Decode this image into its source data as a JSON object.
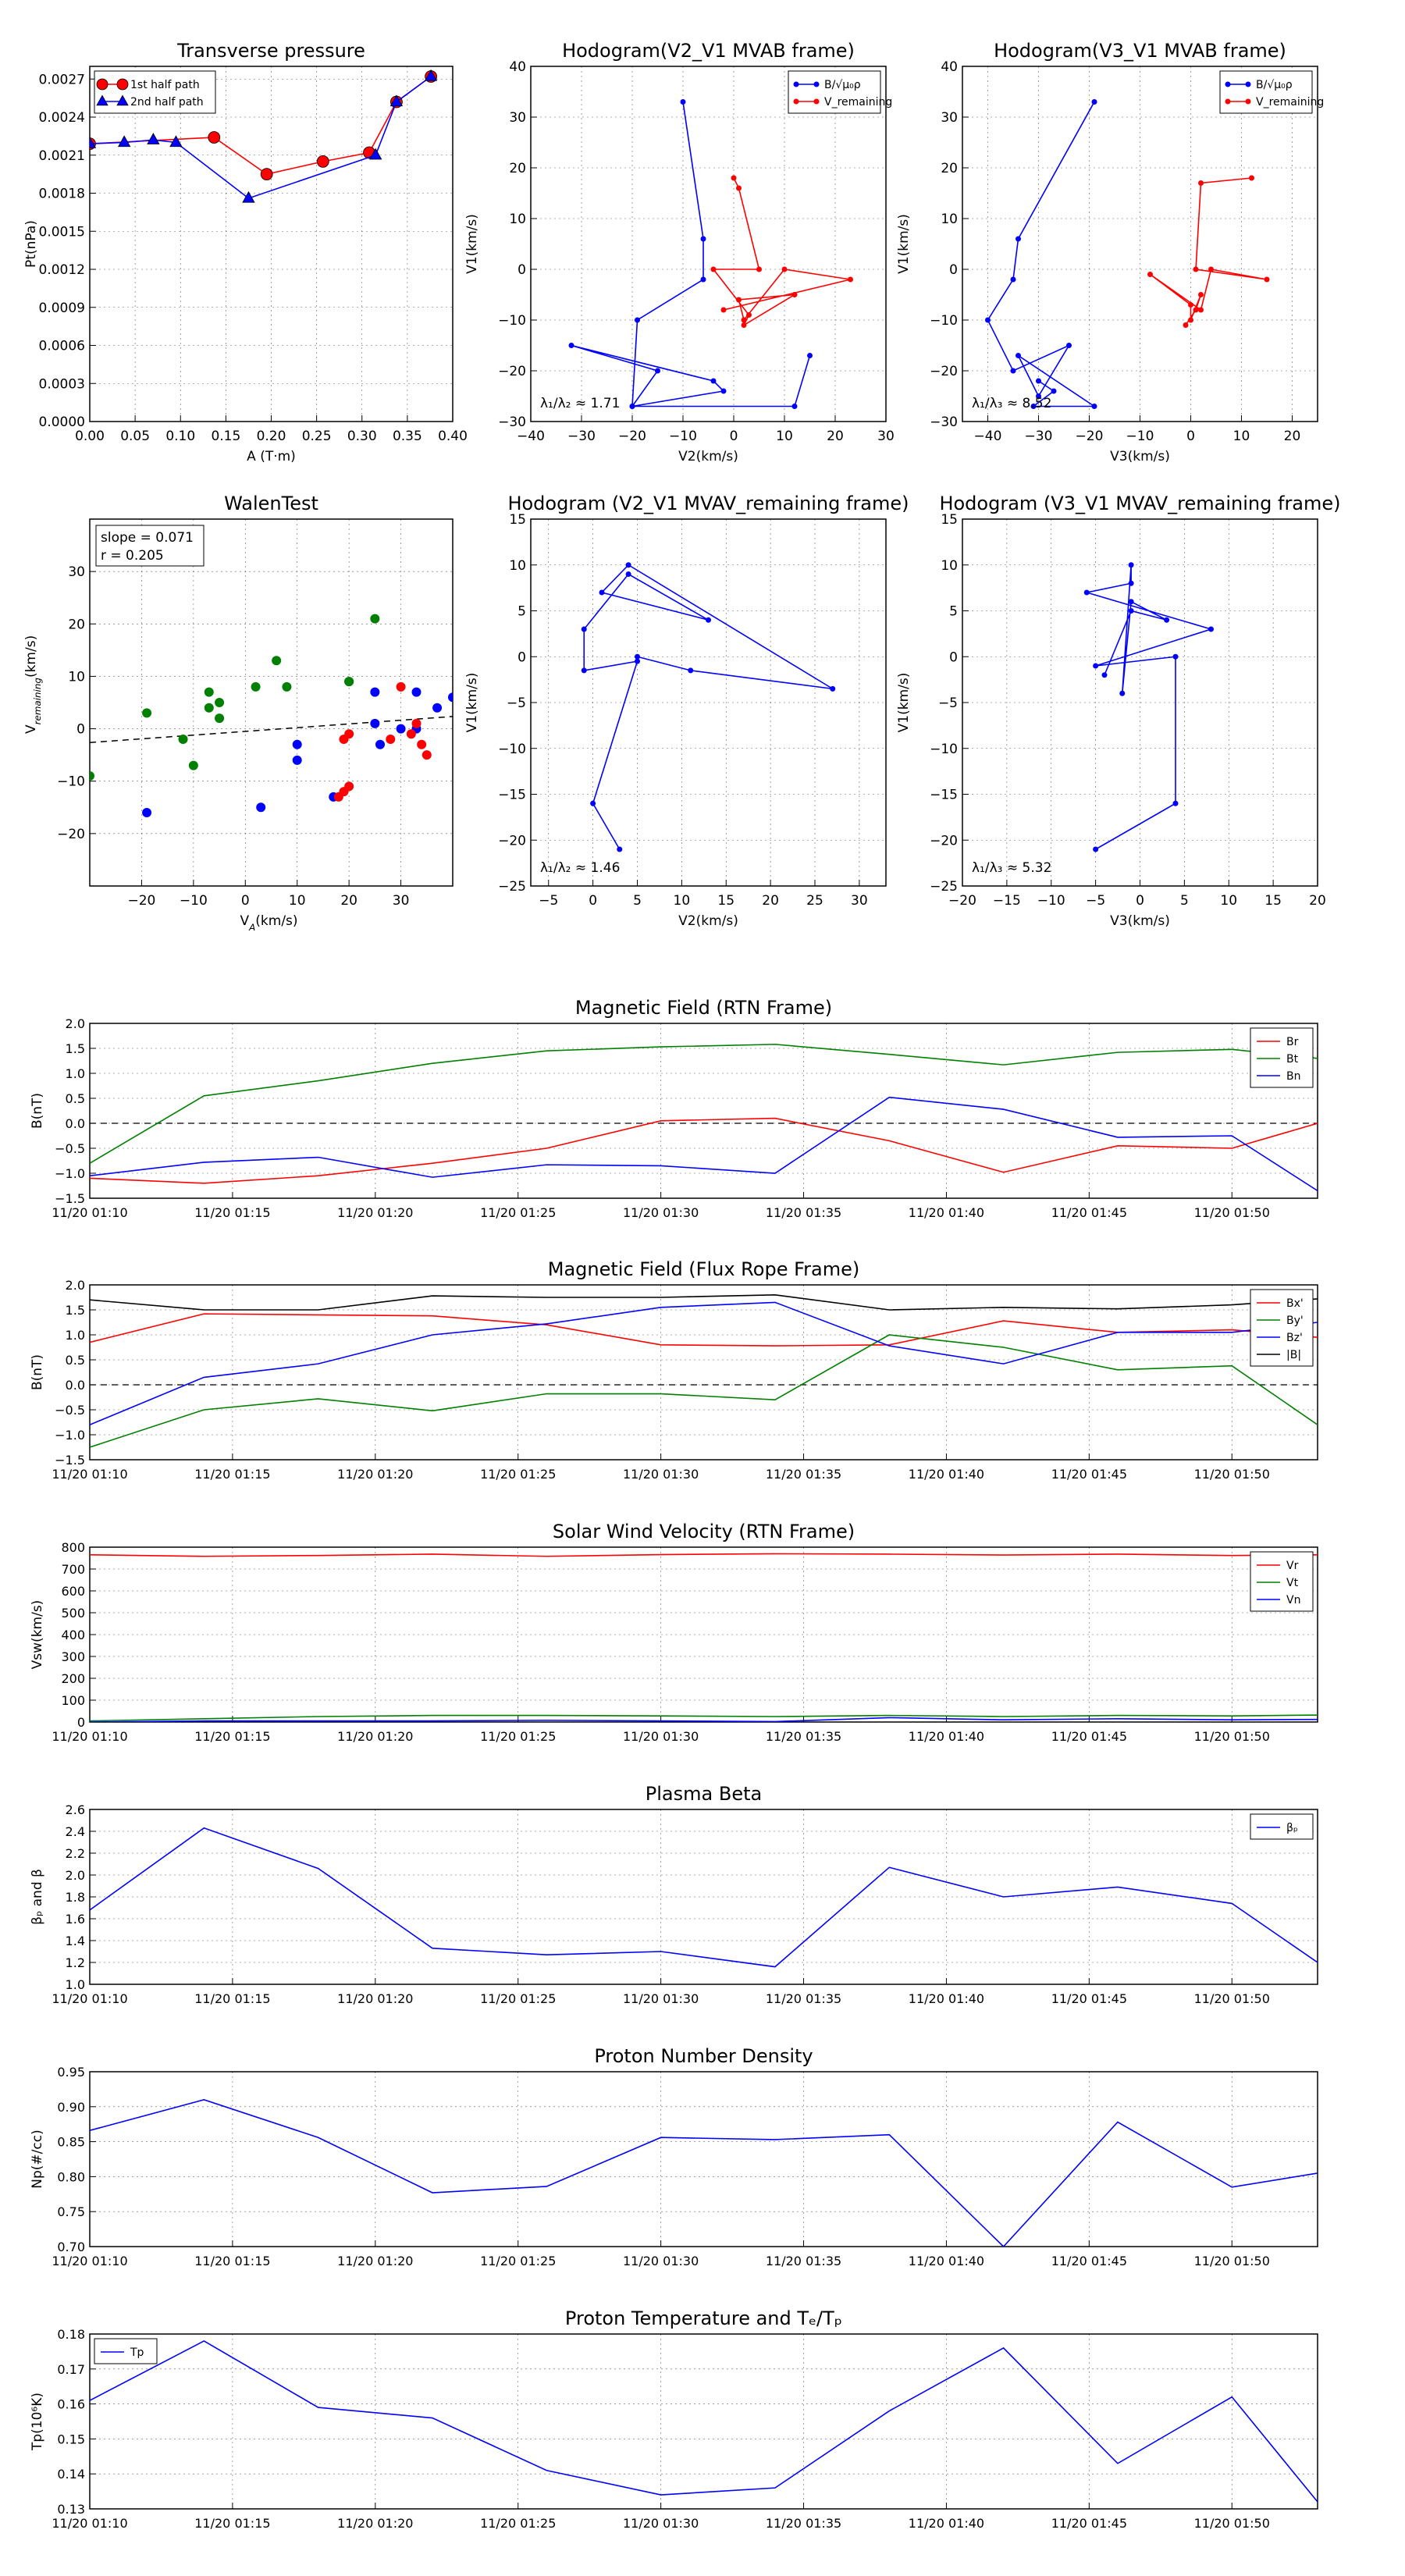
{
  "colors": {
    "red": "#ff0000",
    "green": "#008000",
    "blue": "#0000ff",
    "black": "#000000",
    "dash": "#555555"
  },
  "chart_data": [
    {
      "id": "pt",
      "type": "scatter",
      "title": "Transverse pressure",
      "xlabel": "A (T·m)",
      "ylabel": "Pt(nPa)",
      "xlim": [
        0,
        0.4
      ],
      "ylim": [
        0,
        0.0028
      ],
      "xticks": [
        "0.00",
        "0.05",
        "0.10",
        "0.15",
        "0.20",
        "0.25",
        "0.30",
        "0.35",
        "0.40"
      ],
      "yticks": [
        "0.0000",
        "0.0003",
        "0.0006",
        "0.0009",
        "0.0012",
        "0.0015",
        "0.0018",
        "0.0021",
        "0.0024",
        "0.0027"
      ],
      "legend": [
        "1st half path",
        "2nd half path"
      ],
      "series": [
        {
          "name": "1st half path",
          "color": "red",
          "marker": "circle",
          "x": [
            0.0,
            0.137,
            0.195,
            0.257,
            0.308,
            0.338,
            0.376
          ],
          "y": [
            0.00219,
            0.00224,
            0.00195,
            0.00205,
            0.00212,
            0.00252,
            0.00272
          ]
        },
        {
          "name": "2nd half path",
          "color": "blue",
          "marker": "triangle",
          "x": [
            0.376,
            0.338,
            0.315,
            0.175,
            0.095,
            0.07,
            0.038,
            0.0
          ],
          "y": [
            0.00272,
            0.00252,
            0.0021,
            0.00176,
            0.0022,
            0.00222,
            0.0022,
            0.00219
          ]
        }
      ]
    },
    {
      "id": "hod1",
      "type": "line",
      "title": "Hodogram(V2_V1 MVAB frame)",
      "xlabel": "V2(km/s)",
      "ylabel": "V1(km/s)",
      "xlim": [
        -40,
        30
      ],
      "ylim": [
        -30,
        40
      ],
      "xticks": [
        "−40",
        "−30",
        "−20",
        "−10",
        "0",
        "10",
        "20",
        "30"
      ],
      "yticks": [
        "−30",
        "−20",
        "−10",
        "0",
        "10",
        "20",
        "30",
        "40"
      ],
      "annotation": "λ₁/λ₂ ≈ 1.71",
      "legend": [
        "B/√μ₀ρ",
        "V_remaining"
      ],
      "series": [
        {
          "name": "B/√μ₀ρ",
          "color": "blue",
          "x": [
            -10,
            -6,
            -6,
            -19,
            -20,
            -15,
            -32,
            -4,
            -2,
            -20,
            12,
            15
          ],
          "y": [
            33,
            6,
            -2,
            -10,
            -27,
            -20,
            -15,
            -22,
            -24,
            -27,
            -27,
            -17
          ]
        },
        {
          "name": "V_remaining",
          "color": "red",
          "x": [
            0,
            1,
            5,
            -4,
            3,
            2,
            12,
            1,
            2,
            10,
            23,
            -2
          ],
          "y": [
            18,
            16,
            0,
            0,
            -9,
            -11,
            -5,
            -6,
            -10,
            0,
            -2,
            -8
          ]
        }
      ]
    },
    {
      "id": "hod2",
      "type": "line",
      "title": "Hodogram(V3_V1 MVAB frame)",
      "xlabel": "V3(km/s)",
      "ylabel": "V1(km/s)",
      "xlim": [
        -45,
        25
      ],
      "ylim": [
        -30,
        40
      ],
      "xticks": [
        "−40",
        "−30",
        "−20",
        "−10",
        "0",
        "10",
        "20"
      ],
      "yticks": [
        "−30",
        "−20",
        "−10",
        "0",
        "10",
        "20",
        "30",
        "40"
      ],
      "annotation": "λ₁/λ₃ ≈ 8.52",
      "legend": [
        "B/√μ₀ρ",
        "V_remaining"
      ],
      "series": [
        {
          "name": "B/√μ₀ρ",
          "color": "blue",
          "x": [
            -19,
            -34,
            -35,
            -40,
            -35,
            -24,
            -30,
            -34,
            -19,
            -31,
            -27,
            -30
          ],
          "y": [
            33,
            6,
            -2,
            -10,
            -20,
            -15,
            -25,
            -17,
            -27,
            -27,
            -24,
            -22
          ]
        },
        {
          "name": "V_remaining",
          "color": "red",
          "x": [
            12,
            2,
            1,
            15,
            4,
            2,
            -8,
            0,
            0,
            2,
            1,
            -1
          ],
          "y": [
            18,
            17,
            0,
            -2,
            0,
            -8,
            -1,
            -7,
            -10,
            -5,
            -8,
            -11
          ]
        }
      ]
    },
    {
      "id": "walen",
      "type": "scatter",
      "title": "WalenTest",
      "xlabel": "V_A(km/s)",
      "ylabel": "V_remaining(km/s)",
      "xlim": [
        -30,
        40
      ],
      "ylim": [
        -30,
        40
      ],
      "xticks": [
        "−20",
        "−10",
        "0",
        "10",
        "20",
        "30"
      ],
      "yticks": [
        "−20",
        "−10",
        "0",
        "10",
        "20",
        "30"
      ],
      "stats": [
        "slope = 0.071",
        "r = 0.205"
      ],
      "fit": {
        "slope": 0.071,
        "intercept": -0.5
      },
      "series": [
        {
          "color": "green",
          "x": [
            -30,
            -19,
            -12,
            -10,
            -7,
            -7,
            -5,
            -5,
            2,
            6,
            8,
            20,
            20,
            25
          ],
          "y": [
            -9,
            3,
            -2,
            -7,
            7,
            4,
            5,
            2,
            8,
            13,
            8,
            9,
            9,
            21
          ]
        },
        {
          "color": "blue",
          "x": [
            -19,
            3,
            10,
            10,
            17,
            25,
            25,
            30,
            33,
            37,
            40,
            26,
            33
          ],
          "y": [
            -16,
            -15,
            -3,
            -6,
            -13,
            7,
            1,
            0,
            7,
            4,
            6,
            -3,
            0
          ]
        },
        {
          "color": "red",
          "x": [
            18,
            19,
            20,
            19,
            20,
            30,
            28,
            32,
            33,
            34,
            35
          ],
          "y": [
            -13,
            -12,
            -11,
            -2,
            -1,
            8,
            -2,
            -1,
            1,
            -3,
            -5
          ]
        }
      ]
    },
    {
      "id": "hod3",
      "type": "line",
      "title": "Hodogram (V2_V1 MVAV_remaining frame)",
      "xlabel": "V2(km/s)",
      "ylabel": "V1(km/s)",
      "xlim": [
        -7,
        33
      ],
      "ylim": [
        -25,
        15
      ],
      "xticks": [
        "−5",
        "0",
        "5",
        "10",
        "15",
        "20",
        "25",
        "30"
      ],
      "yticks": [
        "−25",
        "−20",
        "−15",
        "−10",
        "−5",
        "0",
        "5",
        "10",
        "15"
      ],
      "annotation": "λ₁/λ₂ ≈ 1.46",
      "series": [
        {
          "color": "blue",
          "x": [
            3,
            0,
            5,
            -1,
            -1,
            4,
            13,
            1,
            4,
            27,
            11,
            5
          ],
          "y": [
            -21,
            -16,
            -0.5,
            -1.5,
            3,
            9,
            4,
            7,
            10,
            -3.5,
            -1.5,
            0
          ]
        }
      ]
    },
    {
      "id": "hod4",
      "type": "line",
      "title": "Hodogram (V3_V1 MVAV_remaining frame)",
      "xlabel": "V3(km/s)",
      "ylabel": "V1(km/s)",
      "xlim": [
        -20,
        20
      ],
      "ylim": [
        -25,
        15
      ],
      "xticks": [
        "−20",
        "−15",
        "−10",
        "−5",
        "0",
        "5",
        "10",
        "15",
        "20"
      ],
      "yticks": [
        "−25",
        "−20",
        "−15",
        "−10",
        "−5",
        "0",
        "5",
        "10",
        "15"
      ],
      "annotation": "λ₁/λ₃ ≈ 5.32",
      "series": [
        {
          "color": "blue",
          "x": [
            -5,
            4,
            4,
            -5,
            8,
            -6,
            -1,
            -1,
            -2,
            -1,
            3,
            -1,
            -4
          ],
          "y": [
            -21,
            -16,
            0,
            -1,
            3,
            7,
            8,
            10,
            -4,
            6,
            4,
            5,
            -2
          ]
        }
      ]
    },
    {
      "id": "ts1",
      "type": "line",
      "title": "Magnetic Field (RTN Frame)",
      "ylabel": "B(nT)",
      "xlim": [
        0,
        43
      ],
      "ylim": [
        -1.5,
        2.0
      ],
      "zeroline": true,
      "xticks": [
        "11/20 01:10",
        "11/20 01:15",
        "11/20 01:20",
        "11/20 01:25",
        "11/20 01:30",
        "11/20 01:35",
        "11/20 01:40",
        "11/20 01:45",
        "11/20 01:50"
      ],
      "yticks": [
        "−1.5",
        "−1.0",
        "−0.5",
        "0.0",
        "0.5",
        "1.0",
        "1.5",
        "2.0"
      ],
      "legend": [
        "Br",
        "Bt",
        "Bn"
      ],
      "x": [
        0,
        4,
        8,
        12,
        16,
        20,
        24,
        28,
        32,
        36,
        40,
        43
      ],
      "series": [
        {
          "name": "Br",
          "color": "red",
          "values": [
            -1.1,
            -1.2,
            -1.05,
            -0.8,
            -0.5,
            0.05,
            0.1,
            -0.35,
            -0.98,
            -0.45,
            -0.5,
            0.0
          ]
        },
        {
          "name": "Bt",
          "color": "green",
          "values": [
            -0.8,
            0.55,
            0.85,
            1.2,
            1.45,
            1.53,
            1.58,
            1.38,
            1.17,
            1.42,
            1.48,
            1.3
          ]
        },
        {
          "name": "Bn",
          "color": "blue",
          "values": [
            -1.05,
            -0.78,
            -0.68,
            -1.08,
            -0.83,
            -0.85,
            -1.0,
            0.52,
            0.28,
            -0.28,
            -0.25,
            -1.35
          ]
        }
      ]
    },
    {
      "id": "ts2",
      "type": "line",
      "title": "Magnetic Field (Flux Rope Frame)",
      "ylabel": "B(nT)",
      "xlim": [
        0,
        43
      ],
      "ylim": [
        -1.5,
        2.0
      ],
      "zeroline": true,
      "xticks": [
        "11/20 01:10",
        "11/20 01:15",
        "11/20 01:20",
        "11/20 01:25",
        "11/20 01:30",
        "11/20 01:35",
        "11/20 01:40",
        "11/20 01:45",
        "11/20 01:50"
      ],
      "yticks": [
        "−1.5",
        "−1.0",
        "−0.5",
        "0.0",
        "0.5",
        "1.0",
        "1.5",
        "2.0"
      ],
      "legend": [
        "Bx'",
        "By'",
        "Bz'",
        "|B|"
      ],
      "x": [
        0,
        4,
        8,
        12,
        16,
        20,
        24,
        28,
        32,
        36,
        40,
        43
      ],
      "series": [
        {
          "name": "Bx'",
          "color": "red",
          "values": [
            0.85,
            1.42,
            1.4,
            1.38,
            1.2,
            0.8,
            0.78,
            0.8,
            1.28,
            1.05,
            1.1,
            0.95
          ]
        },
        {
          "name": "By'",
          "color": "green",
          "values": [
            -1.25,
            -0.5,
            -0.28,
            -0.52,
            -0.18,
            -0.18,
            -0.3,
            1.0,
            0.75,
            0.3,
            0.38,
            -0.8
          ]
        },
        {
          "name": "Bz'",
          "color": "blue",
          "values": [
            -0.8,
            0.15,
            0.42,
            1.0,
            1.22,
            1.55,
            1.65,
            0.78,
            0.42,
            1.05,
            1.05,
            1.25
          ]
        },
        {
          "name": "|B|",
          "color": "black",
          "values": [
            1.7,
            1.5,
            1.5,
            1.78,
            1.75,
            1.75,
            1.8,
            1.5,
            1.55,
            1.52,
            1.6,
            1.72
          ]
        }
      ]
    },
    {
      "id": "ts3",
      "type": "line",
      "title": "Solar Wind Velocity (RTN Frame)",
      "ylabel": "Vsw(km/s)",
      "xlim": [
        0,
        43
      ],
      "ylim": [
        0,
        800
      ],
      "xticks": [
        "11/20 01:10",
        "11/20 01:15",
        "11/20 01:20",
        "11/20 01:25",
        "11/20 01:30",
        "11/20 01:35",
        "11/20 01:40",
        "11/20 01:45",
        "11/20 01:50"
      ],
      "yticks": [
        "0",
        "100",
        "200",
        "300",
        "400",
        "500",
        "600",
        "700",
        "800"
      ],
      "legend": [
        "Vr",
        "Vt",
        "Vn"
      ],
      "x": [
        0,
        4,
        8,
        12,
        16,
        20,
        24,
        28,
        32,
        36,
        40,
        43
      ],
      "series": [
        {
          "name": "Vr",
          "color": "red",
          "values": [
            765,
            758,
            762,
            768,
            758,
            766,
            770,
            768,
            764,
            768,
            762,
            765
          ]
        },
        {
          "name": "Vt",
          "color": "green",
          "values": [
            5,
            15,
            25,
            30,
            30,
            28,
            25,
            30,
            25,
            30,
            28,
            32
          ]
        },
        {
          "name": "Vn",
          "color": "blue",
          "values": [
            0,
            5,
            5,
            5,
            8,
            5,
            2,
            20,
            10,
            15,
            10,
            12
          ]
        }
      ]
    },
    {
      "id": "ts4",
      "type": "line",
      "title": "Plasma Beta",
      "ylabel": "βₚ and β",
      "xlim": [
        0,
        43
      ],
      "ylim": [
        1.0,
        2.6
      ],
      "xticks": [
        "11/20 01:10",
        "11/20 01:15",
        "11/20 01:20",
        "11/20 01:25",
        "11/20 01:30",
        "11/20 01:35",
        "11/20 01:40",
        "11/20 01:45",
        "11/20 01:50"
      ],
      "yticks": [
        "1.0",
        "1.2",
        "1.4",
        "1.6",
        "1.8",
        "2.0",
        "2.2",
        "2.4",
        "2.6"
      ],
      "legend": [
        "βₚ"
      ],
      "x": [
        0,
        4,
        8,
        12,
        16,
        20,
        24,
        28,
        32,
        36,
        40,
        43
      ],
      "series": [
        {
          "name": "βₚ",
          "color": "blue",
          "values": [
            1.68,
            2.43,
            2.06,
            1.33,
            1.27,
            1.3,
            1.16,
            2.07,
            1.8,
            1.89,
            1.74,
            1.2
          ]
        }
      ]
    },
    {
      "id": "ts5",
      "type": "line",
      "title": "Proton Number Density",
      "ylabel": "Np(#/cc)",
      "xlim": [
        0,
        43
      ],
      "ylim": [
        0.7,
        0.95
      ],
      "xticks": [
        "11/20 01:10",
        "11/20 01:15",
        "11/20 01:20",
        "11/20 01:25",
        "11/20 01:30",
        "11/20 01:35",
        "11/20 01:40",
        "11/20 01:45",
        "11/20 01:50"
      ],
      "yticks": [
        "0.70",
        "0.75",
        "0.80",
        "0.85",
        "0.90",
        "0.95"
      ],
      "x": [
        0,
        4,
        8,
        12,
        16,
        20,
        24,
        28,
        32,
        36,
        40,
        43
      ],
      "series": [
        {
          "color": "blue",
          "values": [
            0.866,
            0.91,
            0.856,
            0.777,
            0.786,
            0.856,
            0.853,
            0.86,
            0.7,
            0.878,
            0.785,
            0.805
          ]
        }
      ]
    },
    {
      "id": "ts6",
      "type": "line",
      "title": "Proton Temperature and Tₑ/Tₚ",
      "ylabel": "Tp(10⁶K)",
      "xlim": [
        0,
        43
      ],
      "ylim": [
        0.13,
        0.18
      ],
      "xticks": [
        "11/20 01:10",
        "11/20 01:15",
        "11/20 01:20",
        "11/20 01:25",
        "11/20 01:30",
        "11/20 01:35",
        "11/20 01:40",
        "11/20 01:45",
        "11/20 01:50"
      ],
      "yticks": [
        "0.13",
        "0.14",
        "0.15",
        "0.16",
        "0.17",
        "0.18"
      ],
      "legend": [
        "Tp"
      ],
      "legend_loc": "upper left",
      "x": [
        0,
        4,
        8,
        12,
        16,
        20,
        24,
        28,
        32,
        36,
        40,
        43
      ],
      "series": [
        {
          "name": "Tp",
          "color": "blue",
          "values": [
            0.161,
            0.178,
            0.159,
            0.156,
            0.141,
            0.134,
            0.136,
            0.158,
            0.176,
            0.143,
            0.162,
            0.132
          ]
        }
      ]
    }
  ]
}
